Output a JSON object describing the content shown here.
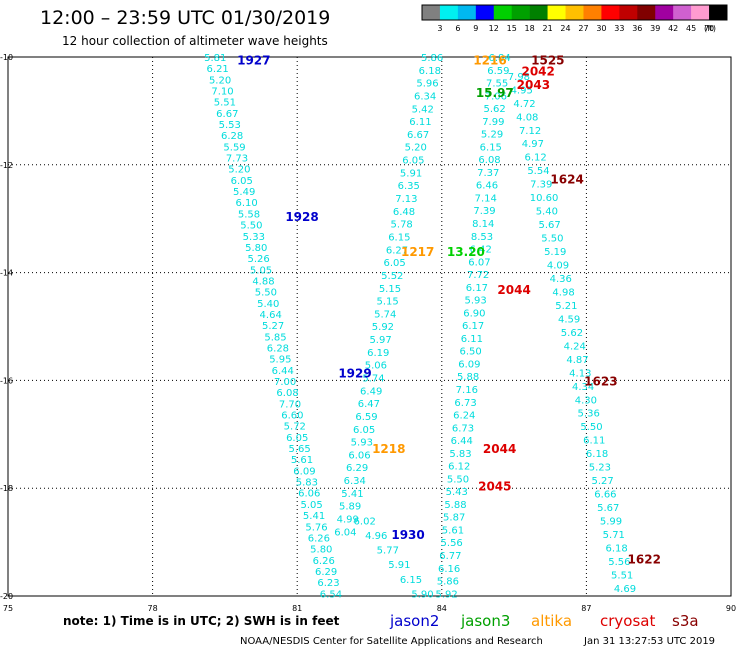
{
  "header": {
    "title": "12:00 – 23:59 UTC 01/30/2019",
    "subtitle": "12 hour collection of altimeter wave heights"
  },
  "colorbar": {
    "colors": [
      "#808080",
      "#00f0f0",
      "#00b8f0",
      "#0000ff",
      "#00d000",
      "#00a000",
      "#008000",
      "#ffff00",
      "#ffc000",
      "#ff8000",
      "#ff0000",
      "#c00000",
      "#800000",
      "#a000a0",
      "#d060d0",
      "#ff9bd0",
      "#000000"
    ],
    "ticks": [
      "3",
      "6",
      "9",
      "12",
      "15",
      "18",
      "21",
      "24",
      "27",
      "30",
      "33",
      "36",
      "39",
      "42",
      "45",
      "70"
    ],
    "unit": "(ft)"
  },
  "footer": {
    "note": "note: 1) Time is in UTC; 2) SWH is in feet",
    "legend": [
      {
        "name": "jason2",
        "color": "#0000cc"
      },
      {
        "name": "jason3",
        "color": "#00a000"
      },
      {
        "name": "altika",
        "color": "#ff9900"
      },
      {
        "name": "cryosat",
        "color": "#dd0000"
      },
      {
        "name": "s3a",
        "color": "#880000"
      }
    ],
    "credit": "NOAA/NESDIS Center for Satellite Applications and Research",
    "timestamp": "Jan 31 13:27:53 UTC 2019"
  },
  "chart_data": {
    "type": "scatter",
    "xlim": [
      75,
      90
    ],
    "ylim": [
      -20,
      -10
    ],
    "x_ticks": [
      "75",
      "78",
      "81",
      "84",
      "87",
      "90"
    ],
    "y_ticks": [
      "-10",
      "-12",
      "-14",
      "-16",
      "-18",
      "-20"
    ],
    "grid": true,
    "time_labels": [
      {
        "text": "1927",
        "x": 80.1,
        "y": -10.05,
        "color": "#0000cc"
      },
      {
        "text": "1928",
        "x": 81.1,
        "y": -12.95,
        "color": "#0000cc"
      },
      {
        "text": "1929",
        "x": 82.2,
        "y": -15.85,
        "color": "#0000cc"
      },
      {
        "text": "1930",
        "x": 83.3,
        "y": -18.85,
        "color": "#0000cc"
      },
      {
        "text": "1216",
        "x": 85.0,
        "y": -10.05,
        "color": "#ff9900"
      },
      {
        "text": "1217",
        "x": 83.5,
        "y": -13.6,
        "color": "#ff9900"
      },
      {
        "text": "1218",
        "x": 82.9,
        "y": -17.25,
        "color": "#ff9900"
      },
      {
        "text": "15.97",
        "x": 85.1,
        "y": -10.65,
        "color": "#00a000"
      },
      {
        "text": "13.20",
        "x": 84.5,
        "y": -13.6,
        "color": "#00d000"
      },
      {
        "text": "1525",
        "x": 86.2,
        "y": -10.05,
        "color": "#880000"
      },
      {
        "text": "2042",
        "x": 86.0,
        "y": -10.25,
        "color": "#dd0000"
      },
      {
        "text": "2043",
        "x": 85.9,
        "y": -10.5,
        "color": "#dd0000"
      },
      {
        "text": "1624",
        "x": 86.6,
        "y": -12.25,
        "color": "#880000"
      },
      {
        "text": "2044",
        "x": 85.5,
        "y": -14.3,
        "color": "#dd0000"
      },
      {
        "text": "1623",
        "x": 87.3,
        "y": -16.0,
        "color": "#880000"
      },
      {
        "text": "2044",
        "x": 85.2,
        "y": -17.25,
        "color": "#dd0000"
      },
      {
        "text": "2045",
        "x": 85.1,
        "y": -17.95,
        "color": "#dd0000"
      },
      {
        "text": "1622",
        "x": 88.2,
        "y": -19.3,
        "color": "#880000"
      }
    ],
    "series": [
      {
        "name": "jason2",
        "start": [
          79.3,
          -10.0
        ],
        "end": [
          81.7,
          -19.95
        ],
        "values": [
          "5.81",
          "6.21",
          "5.20",
          "7.10",
          "5.51",
          "6.67",
          "5.53",
          "6.28",
          "5.59",
          "7.73",
          "5.20",
          "6.05",
          "5.49",
          "6.10",
          "5.58",
          "5.50",
          "5.33",
          "5.80",
          "5.26",
          "5.05",
          "4.88",
          "5.50",
          "5.40",
          "4.64",
          "5.27",
          "5.85",
          "6.28",
          "5.95",
          "6.44",
          "7.00",
          "6.08",
          "7.70",
          "6.60",
          "5.72",
          "6.05",
          "5.65",
          "5.61",
          "6.09",
          "5.83",
          "6.06",
          "5.05",
          "5.41",
          "5.76",
          "6.26",
          "5.80",
          "6.26",
          "6.29",
          "6.23",
          "6.54"
        ]
      },
      {
        "name": "jason2",
        "start": [
          83.8,
          -10.0
        ],
        "end": [
          82.0,
          -18.8
        ],
        "values": [
          "5.86",
          "6.18",
          "5.96",
          "6.34",
          "5.42",
          "6.11",
          "6.67",
          "5.20",
          "6.05",
          "5.91",
          "6.35",
          "7.13",
          "6.48",
          "5.78",
          "6.15",
          "6.27",
          "6.05",
          "5.52",
          "5.15",
          "5.15",
          "5.74",
          "5.92",
          "5.97",
          "6.19",
          "5.06",
          "5.74",
          "6.49",
          "6.47",
          "6.59",
          "6.05",
          "5.93",
          "6.06",
          "6.29",
          "6.34",
          "5.41",
          "5.89",
          "4.99",
          "6.04"
        ]
      },
      {
        "name": "jason2",
        "start": [
          82.4,
          -18.6
        ],
        "end": [
          83.6,
          -19.95
        ],
        "values": [
          "6.02",
          "4.96",
          "5.77",
          "5.91",
          "6.15",
          "5.90"
        ]
      },
      {
        "name": "altika",
        "start": [
          85.2,
          -10.0
        ],
        "end": [
          84.1,
          -19.95
        ],
        "values": [
          "6.84",
          "6.59",
          "7.55",
          "7.06",
          "5.62",
          "7.99",
          "5.29",
          "6.15",
          "6.08",
          "7.37",
          "6.46",
          "7.14",
          "7.39",
          "8.14",
          "8.53",
          "6.42",
          "6.07",
          "7.72",
          "6.17",
          "5.93",
          "6.90",
          "6.17",
          "6.11",
          "6.50",
          "6.09",
          "5.88",
          "7.16",
          "6.73",
          "6.24",
          "6.73",
          "6.44",
          "5.83",
          "6.12",
          "5.50",
          "5.43",
          "5.88",
          "5.87",
          "5.61",
          "5.56",
          "6.77",
          "6.16",
          "5.86",
          "5.92"
        ]
      },
      {
        "name": "cryosat",
        "start": [
          85.6,
          -10.35
        ],
        "end": [
          87.8,
          -19.85
        ],
        "values": [
          "7.98",
          "4.95",
          "4.72",
          "4.08",
          "7.12",
          "4.97",
          "6.12",
          "5.54",
          "7.39",
          "10.60",
          "5.40",
          "5.67",
          "5.50",
          "5.19",
          "4.09",
          "4.36",
          "4.98",
          "5.21",
          "4.59",
          "5.62",
          "4.24",
          "4.87",
          "4.13",
          "4.34",
          "4.30",
          "5.36",
          "5.50",
          "6.11",
          "6.18",
          "5.23",
          "5.27",
          "6.66",
          "5.67",
          "5.99",
          "5.71",
          "6.18",
          "5.56",
          "5.51",
          "4.69"
        ]
      }
    ]
  }
}
